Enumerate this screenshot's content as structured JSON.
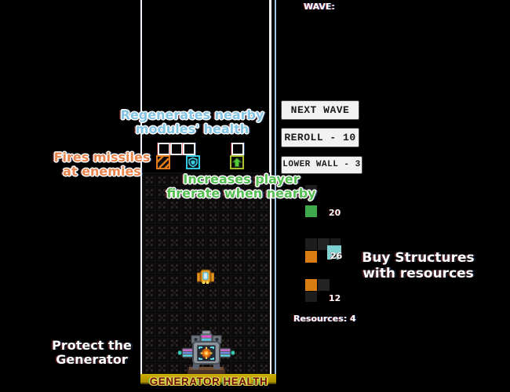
{
  "hud": {
    "wave": "WAVE:",
    "resources": "Resources: 4",
    "generator_health": "GENERATOR HEALTH"
  },
  "buttons": [
    {
      "label": "NEXT WAVE"
    },
    {
      "label": "REROLL - 10"
    },
    {
      "label": "LOWER WALL - 3"
    }
  ],
  "labels": {
    "regen": "Regenerates nearby\nmodules' health",
    "missiles": "Fires missiles\nat enemies",
    "firerate": "Increases player\nfirerate when nearby",
    "protect": "Protect the\nGenerator",
    "buy": "Buy Structures\nwith resources"
  },
  "shop": {
    "items": [
      {
        "name": "green-module-piece",
        "cost": "20"
      },
      {
        "name": "orange-teal-piece",
        "cost": "26"
      },
      {
        "name": "orange-corner-piece",
        "cost": "12"
      }
    ]
  },
  "icons": {
    "missile-module-icon": "orange-diagonal-stripes",
    "shield-module-icon": "cyan-shield",
    "firerate-module-icon": "green-up-arrow"
  },
  "colors": {
    "missile_orange": "#e07b1e",
    "shield_cyan": "#35c9e2",
    "firerate_green": "#56bf52",
    "regen_blue": "#84c4e4",
    "shop_green": "#3fa84a",
    "shop_orange": "#d97c12",
    "shop_teal": "#7fd2d2",
    "health_bar_gold": "#c2a300",
    "health_text_red": "#6a1212"
  }
}
